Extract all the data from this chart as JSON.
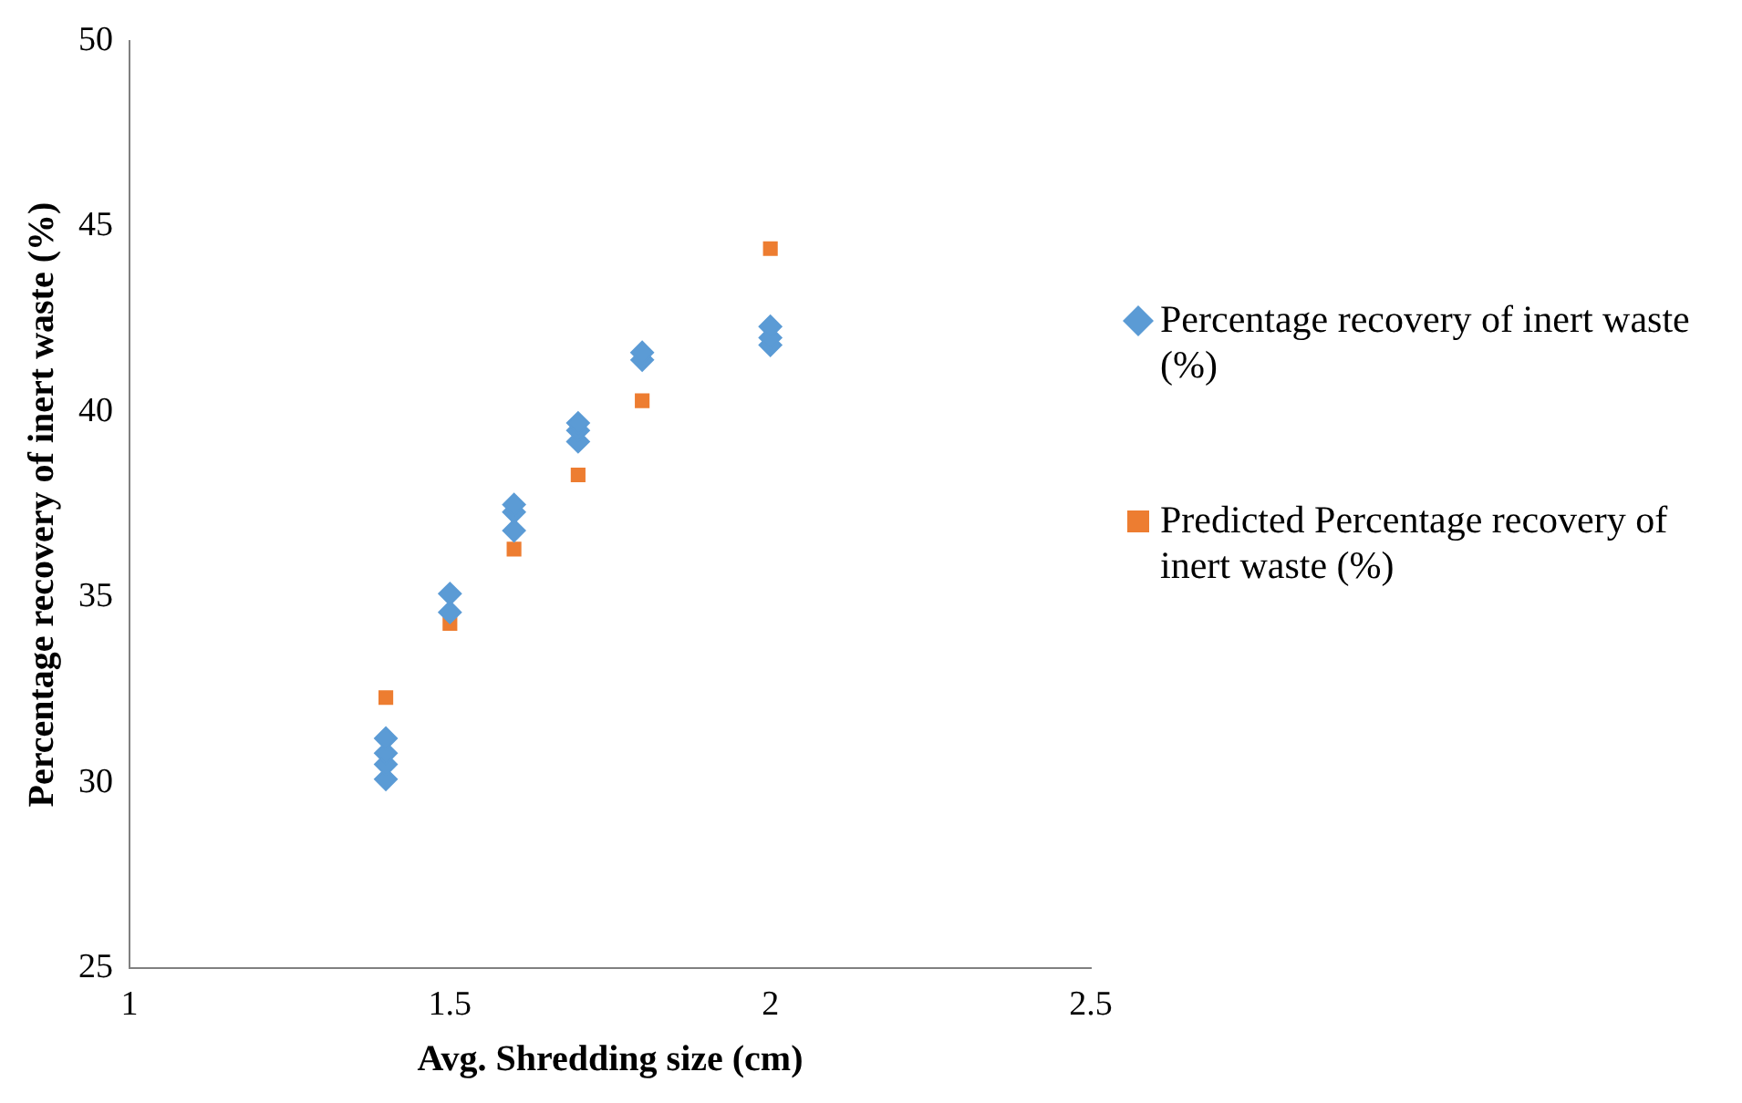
{
  "chart_data": {
    "type": "scatter",
    "xlabel": "Avg. Shredding size (cm)",
    "ylabel": "Percentage recovery of inert waste (%)",
    "xlim": [
      1,
      2.5
    ],
    "xticks": [
      1,
      1.5,
      2,
      2.5
    ],
    "ylim": [
      25,
      50
    ],
    "yticks": [
      25,
      30,
      35,
      40,
      45,
      50
    ],
    "grid": false,
    "legend": "right",
    "series": [
      {
        "name": "Percentage recovery of inert waste (%)",
        "color": "#5b9bd5",
        "marker": "diamond",
        "x": [
          1.4,
          1.4,
          1.4,
          1.4,
          1.5,
          1.5,
          1.6,
          1.6,
          1.6,
          1.7,
          1.7,
          1.7,
          1.8,
          1.8,
          2,
          2,
          2
        ],
        "values": [
          30.1,
          30.5,
          30.8,
          31.2,
          34.6,
          35.1,
          36.8,
          37.3,
          37.5,
          39.2,
          39.5,
          39.7,
          41.4,
          41.6,
          41.8,
          42,
          42.3
        ]
      },
      {
        "name": "Predicted Percentage recovery of inert waste (%)",
        "color": "#ed7d31",
        "marker": "square",
        "x": [
          1.4,
          1.5,
          1.6,
          1.7,
          1.8,
          2
        ],
        "values": [
          32.3,
          34.3,
          36.3,
          38.3,
          40.3,
          44.4
        ]
      }
    ]
  }
}
